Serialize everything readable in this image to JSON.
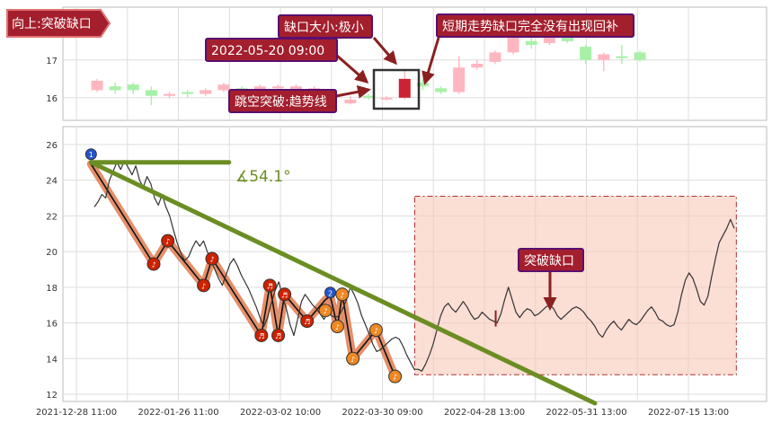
{
  "colors": {
    "up_candle": "#ffb6c1",
    "down_candle": "#a8f0a8",
    "price_line": "#333333",
    "trend_line": "#6b8e23",
    "wave_band": "#e07b50",
    "box_fill": "#f8c8b8",
    "box_border": "#b03030",
    "callout_bg": "#a31f2d",
    "callout_border": "#5a0f6e",
    "arrow": "#8b2020",
    "marker_red": "#cc2200",
    "marker_orange": "#ee8822",
    "marker_blue": "#2255cc",
    "grid": "#dddddd"
  },
  "callouts": {
    "direction": "向上:突破缺口",
    "gap_size": "缺口大小:极小",
    "gap_time": "2022-05-20 09:00",
    "gap_note": "短期走势缺口完全没有出现回补",
    "breakout": "跳空突破:趋势线",
    "box_label": "突破缺口",
    "angle": "∡54.1°"
  },
  "markers": {
    "m1": "1",
    "m2": "2",
    "note": "♪",
    "note2": "♬"
  },
  "chart_data": [
    {
      "type": "candlestick",
      "title": "",
      "ylim": [
        15.4,
        18.4
      ],
      "y_ticks": [
        16,
        17
      ],
      "candles": [
        {
          "o": 16.2,
          "c": 16.45,
          "h": 16.5,
          "l": 16.15
        },
        {
          "o": 16.3,
          "c": 16.2,
          "h": 16.4,
          "l": 16.1
        },
        {
          "o": 16.35,
          "c": 16.2,
          "h": 16.4,
          "l": 16.1
        },
        {
          "o": 16.2,
          "c": 16.05,
          "h": 16.3,
          "l": 15.8
        },
        {
          "o": 16.05,
          "c": 16.1,
          "h": 16.15,
          "l": 15.98
        },
        {
          "o": 16.15,
          "c": 16.1,
          "h": 16.2,
          "l": 16.0
        },
        {
          "o": 16.1,
          "c": 16.2,
          "h": 16.25,
          "l": 16.05
        },
        {
          "o": 16.2,
          "c": 16.35,
          "h": 16.4,
          "l": 16.15
        },
        {
          "o": 16.25,
          "c": 16.2,
          "h": 16.3,
          "l": 16.1
        },
        {
          "o": 16.1,
          "c": 16.3,
          "h": 16.35,
          "l": 16.05
        },
        {
          "o": 16.25,
          "c": 16.3,
          "h": 16.35,
          "l": 16.2
        },
        {
          "o": 16.2,
          "c": 16.3,
          "h": 16.35,
          "l": 16.15
        },
        {
          "o": 16.2,
          "c": 16.25,
          "h": 16.3,
          "l": 16.15
        },
        {
          "o": 16.0,
          "c": 16.05,
          "h": 16.1,
          "l": 15.9
        },
        {
          "o": 15.85,
          "c": 15.95,
          "h": 16.05,
          "l": 15.82
        },
        {
          "o": 16.05,
          "c": 16.0,
          "h": 16.1,
          "l": 15.95
        },
        {
          "o": 16.0,
          "c": 16.0,
          "h": 16.05,
          "l": 15.93
        },
        {
          "o": 16.0,
          "c": 16.5,
          "h": 16.72,
          "l": 15.95
        },
        {
          "o": 16.4,
          "c": 16.3,
          "h": 16.5,
          "l": 16.2
        },
        {
          "o": 16.25,
          "c": 16.15,
          "h": 16.3,
          "l": 16.1
        },
        {
          "o": 16.15,
          "c": 16.8,
          "h": 17.1,
          "l": 16.1
        },
        {
          "o": 16.8,
          "c": 16.9,
          "h": 17.0,
          "l": 16.75
        },
        {
          "o": 16.95,
          "c": 17.2,
          "h": 17.25,
          "l": 16.9
        },
        {
          "o": 17.2,
          "c": 17.6,
          "h": 17.7,
          "l": 17.15
        },
        {
          "o": 17.5,
          "c": 17.4,
          "h": 17.6,
          "l": 17.3
        },
        {
          "o": 17.45,
          "c": 17.65,
          "h": 17.7,
          "l": 17.4
        },
        {
          "o": 17.6,
          "c": 17.5,
          "h": 17.7,
          "l": 17.45
        },
        {
          "o": 17.35,
          "c": 17.0,
          "h": 17.4,
          "l": 16.9
        },
        {
          "o": 17.0,
          "c": 17.15,
          "h": 17.2,
          "l": 16.7
        },
        {
          "o": 17.1,
          "c": 17.05,
          "h": 17.4,
          "l": 16.9
        },
        {
          "o": 17.2,
          "c": 17.0,
          "h": 17.25,
          "l": 16.95
        }
      ]
    },
    {
      "type": "line",
      "title": "",
      "ylim": [
        11.6,
        27.0
      ],
      "y_ticks": [
        12,
        14,
        16,
        18,
        20,
        22,
        24,
        26
      ],
      "x_tick_labels": [
        "2021-12-28 11:00",
        "2022-01-26 11:00",
        "2022-03-02 10:00",
        "2022-03-30 09:00",
        "2022-04-28 13:00",
        "2022-05-31 13:00",
        "2022-07-15 13:00"
      ],
      "price": [
        22.5,
        22.8,
        23.2,
        23.0,
        24.0,
        24.5,
        25.0,
        24.6,
        25.1,
        24.7,
        24.3,
        24.8,
        24.0,
        23.6,
        24.2,
        23.8,
        23.0,
        22.6,
        23.2,
        22.5,
        22.0,
        21.2,
        20.5,
        19.9,
        19.5,
        19.7,
        20.2,
        20.6,
        20.3,
        20.6,
        20.0,
        19.5,
        19.0,
        18.5,
        18.1,
        18.7,
        19.3,
        19.6,
        19.2,
        18.7,
        18.3,
        17.9,
        17.4,
        16.9,
        16.3,
        15.8,
        16.3,
        17.1,
        17.8,
        18.3,
        17.5,
        16.8,
        15.9,
        15.3,
        16.2,
        17.2,
        17.6,
        17.3,
        17.0,
        16.8,
        16.5,
        16.2,
        16.6,
        16.4,
        16.3,
        16.4,
        16.8,
        17.3,
        18.0,
        17.6,
        17.1,
        16.4,
        15.9,
        15.4,
        14.8,
        14.4,
        14.5,
        14.7,
        14.9,
        15.1,
        15.2,
        15.1,
        14.7,
        14.2,
        13.8,
        13.4,
        13.4,
        13.3,
        13.7,
        14.2,
        14.8,
        15.6,
        16.4,
        16.9,
        17.1,
        16.8,
        16.6,
        16.9,
        17.2,
        16.9,
        16.5,
        16.2,
        16.3,
        16.6,
        16.4,
        16.2,
        16.1,
        16.0,
        16.5,
        17.3,
        18.0,
        17.3,
        16.6,
        16.3,
        16.6,
        16.8,
        16.7,
        16.4,
        16.5,
        16.7,
        16.9,
        17.0,
        16.8,
        16.4,
        16.2,
        16.4,
        16.6,
        16.8,
        16.9,
        16.8,
        16.6,
        16.3,
        16.1,
        15.8,
        15.4,
        15.2,
        15.6,
        15.9,
        16.1,
        15.8,
        15.6,
        15.9,
        16.2,
        16.0,
        15.9,
        16.1,
        16.4,
        16.7,
        16.9,
        16.6,
        16.2,
        16.1,
        15.9,
        15.8,
        15.9,
        16.6,
        17.6,
        18.4,
        18.8,
        18.5,
        17.9,
        17.2,
        17.0,
        17.5,
        18.6,
        19.6,
        20.5,
        20.9,
        21.3,
        21.8,
        21.3
      ],
      "wave_points": [
        [
          0.04,
          24.9
        ],
        [
          0.129,
          19.3
        ],
        [
          0.149,
          20.6
        ],
        [
          0.2,
          18.1
        ],
        [
          0.212,
          19.6
        ],
        [
          0.282,
          15.3
        ],
        [
          0.294,
          18.1
        ],
        [
          0.306,
          15.3
        ],
        [
          0.315,
          17.6
        ],
        [
          0.347,
          16.1
        ],
        [
          0.373,
          17.3
        ],
        [
          0.38,
          17.5
        ],
        [
          0.39,
          15.8
        ],
        [
          0.397,
          17.6
        ],
        [
          0.412,
          14.0
        ],
        [
          0.445,
          15.6
        ],
        [
          0.472,
          13.0
        ]
      ],
      "trend_line": {
        "x": [
          0.04,
          0.756
        ],
        "y": [
          25.0,
          11.5
        ]
      },
      "flat_line": {
        "x": [
          0.04,
          0.236
        ],
        "y": [
          25.0,
          25.0
        ]
      },
      "gap_box": {
        "x": [
          0.5,
          0.957
        ],
        "y": [
          13.1,
          23.1
        ]
      },
      "gap_marker": {
        "x": 0.615,
        "y": [
          15.8,
          16.7
        ]
      },
      "angle_label": "∡54.1°"
    }
  ]
}
